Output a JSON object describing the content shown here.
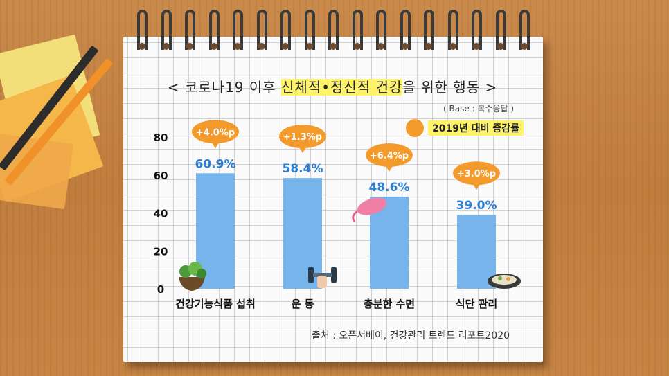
{
  "header": {
    "title_part1": "< 코로나19 이후 ",
    "title_highlight": "신체적•정신적 건강",
    "title_part2": "을 위한 행동 >",
    "base_note": "( Base : 복수응답 )",
    "legend_label": "2019년 대비 증감률"
  },
  "footer": {
    "source": "출처 : 오픈서베이, 건강관리 트렌드 리포트2020"
  },
  "colors": {
    "bar": "#78b4ec",
    "value_text": "#2a7fd4",
    "bubble": "#f39a2c",
    "legend_highlight": "#fff36b"
  },
  "icons": [
    "salad-bowl-icon",
    "dumbbell-arm-icon",
    "sleep-mask-icon",
    "meal-plate-icon"
  ],
  "chart_data": {
    "type": "bar",
    "categories": [
      "건강기능식품 섭취",
      "운 동",
      "충분한 수면",
      "식단 관리"
    ],
    "values": [
      60.9,
      58.4,
      48.6,
      39.0
    ],
    "value_labels": [
      "60.9%",
      "58.4%",
      "48.6%",
      "39.0%"
    ],
    "change_labels": [
      "+4.0%p",
      "+1.3%p",
      "+6.4%p",
      "+3.0%p"
    ],
    "yticks": [
      0,
      20,
      40,
      60,
      80
    ],
    "ylim": [
      0,
      80
    ],
    "xlabel": "",
    "ylabel": "",
    "grid": false
  }
}
